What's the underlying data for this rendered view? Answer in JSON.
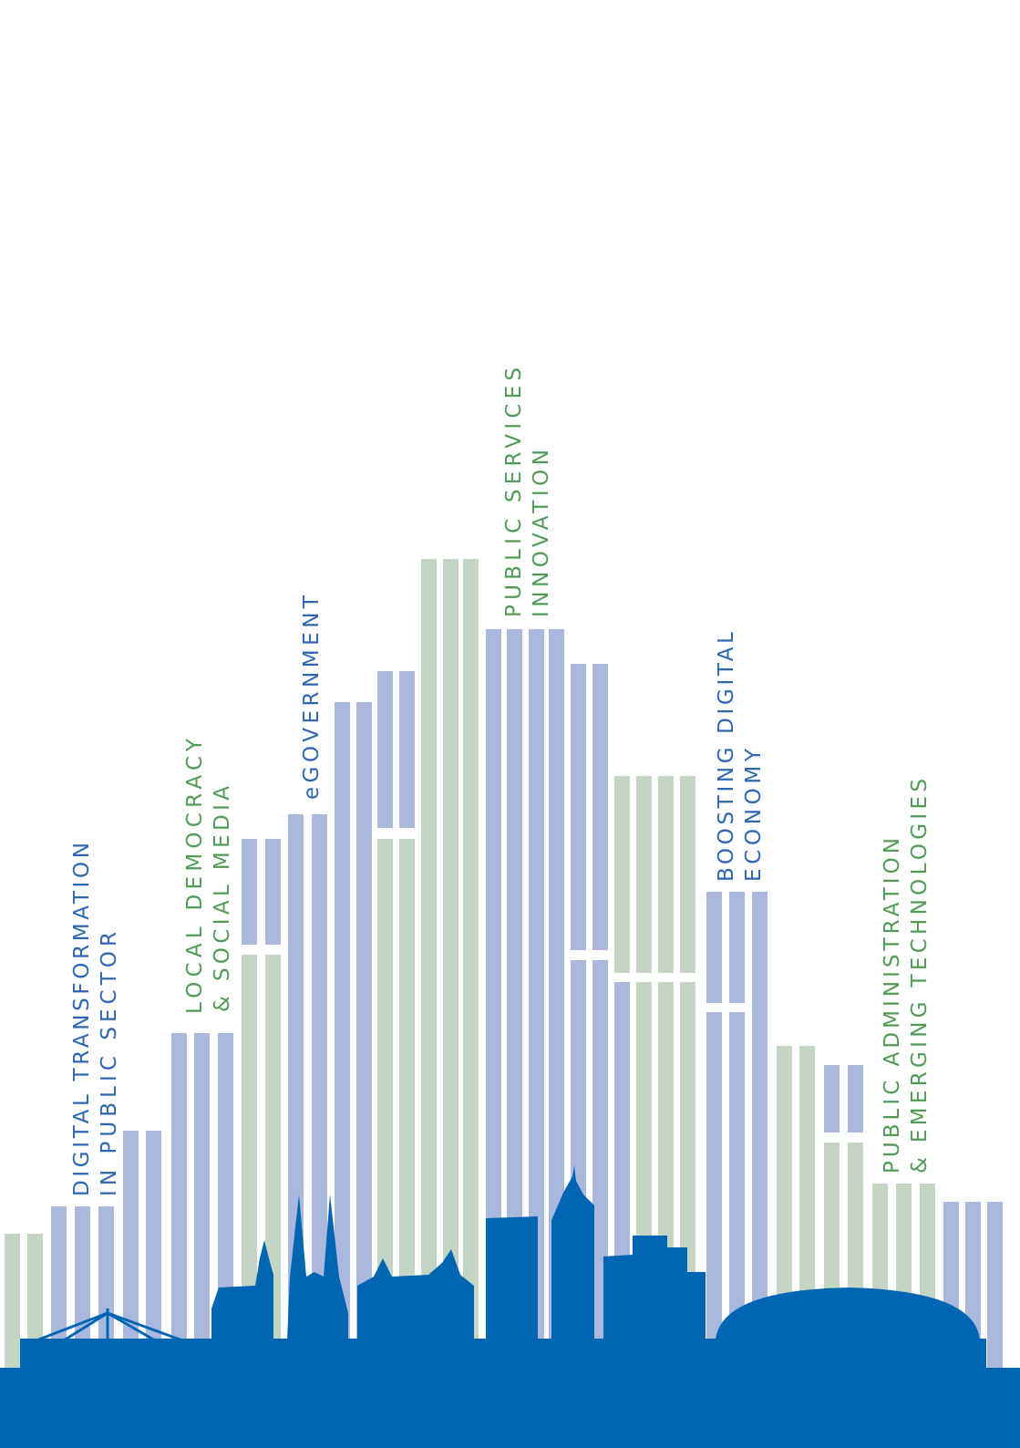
{
  "labels": [
    {
      "lines": [
        "DIGITAL TRANSFORMATION",
        "IN PUBLIC SECTOR"
      ]
    },
    {
      "lines": [
        "LOCAL DEMOCRACY",
        "& SOCIAL MEDIA"
      ]
    },
    {
      "lines": [
        "eGOVERNMENT"
      ]
    },
    {
      "lines": [
        "PUBLIC SERVICES",
        "INNOVATION"
      ]
    },
    {
      "lines": [
        "BOOSTING DIGITAL",
        "ECONOMY"
      ]
    },
    {
      "lines": [
        "PUBLIC ADMINISTRATION",
        "& EMERGING TECHNOLOGIES"
      ]
    }
  ]
}
